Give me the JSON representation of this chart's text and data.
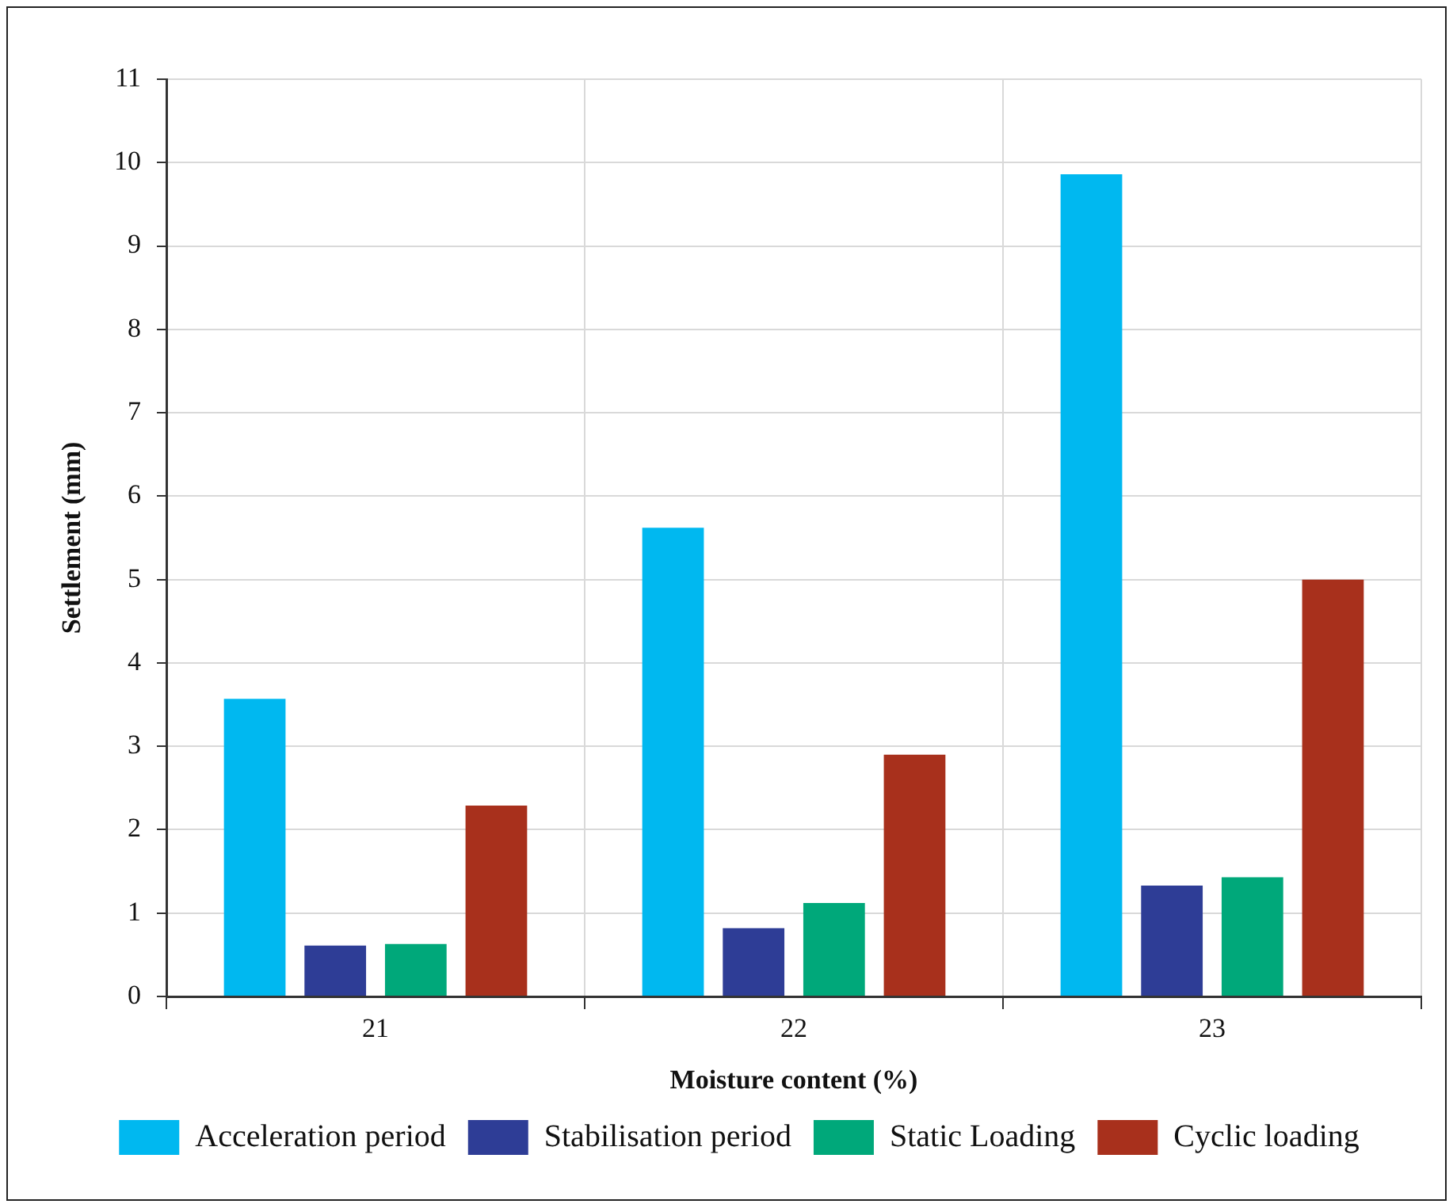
{
  "chart_data": {
    "type": "bar",
    "categories": [
      "21",
      "22",
      "23"
    ],
    "series": [
      {
        "name": "Acceleration period",
        "color": "#00b8f0",
        "values": [
          3.57,
          5.62,
          9.86
        ]
      },
      {
        "name": "Stabilisation period",
        "color": "#2e3d96",
        "values": [
          0.61,
          0.82,
          1.33
        ]
      },
      {
        "name": "Static Loading",
        "color": "#00a87a",
        "values": [
          0.63,
          1.12,
          1.43
        ]
      },
      {
        "name": "Cyclic loading",
        "color": "#a8301c",
        "values": [
          2.29,
          2.9,
          5.0
        ]
      }
    ],
    "xlabel": "Moisture content (%)",
    "ylabel": "Settlement (mm)",
    "ylim": [
      0,
      11
    ],
    "yticks": [
      0,
      1,
      2,
      3,
      4,
      5,
      6,
      7,
      8,
      9,
      10,
      11
    ],
    "grid": true,
    "legend": "bottom"
  }
}
